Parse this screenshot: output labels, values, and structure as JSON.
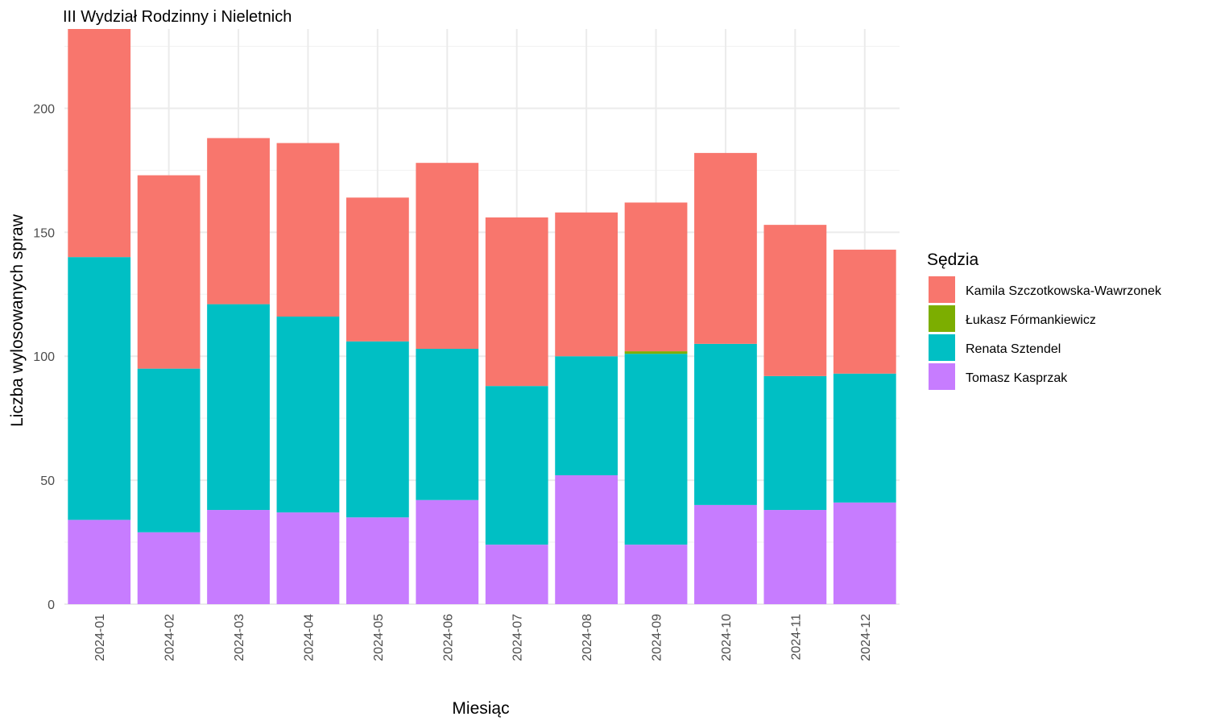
{
  "chart_data": {
    "type": "bar",
    "stacked": true,
    "title": "III Wydział Rodzinny i Nieletnich",
    "xlabel": "Miesiąc",
    "ylabel": "Liczba wylosowanych spraw",
    "ylim": [
      0,
      232
    ],
    "yticks": [
      "0",
      "50",
      "100",
      "150",
      "200"
    ],
    "grid": true,
    "legend_position": "right",
    "legend_title": "Sędzia",
    "categories": [
      "2024-01",
      "2024-02",
      "2024-03",
      "2024-04",
      "2024-05",
      "2024-06",
      "2024-07",
      "2024-08",
      "2024-09",
      "2024-10",
      "2024-11",
      "2024-12"
    ],
    "series": [
      {
        "name": "Tomasz Kasprzak",
        "color": "#C77CFF",
        "values": [
          34,
          29,
          38,
          37,
          35,
          42,
          24,
          52,
          24,
          40,
          38,
          41
        ]
      },
      {
        "name": "Renata Sztendel",
        "color": "#00BFC4",
        "values": [
          106,
          66,
          83,
          79,
          71,
          61,
          64,
          48,
          77,
          65,
          54,
          52
        ]
      },
      {
        "name": "Łukasz Fórmankiewicz",
        "color": "#7CAE00",
        "values": [
          0,
          0,
          0,
          0,
          0,
          0,
          0,
          0,
          1,
          0,
          0,
          0
        ]
      },
      {
        "name": "Kamila Szczotkowska-Wawrzonek",
        "color": "#F8766D",
        "values": [
          92,
          78,
          67,
          70,
          58,
          75,
          68,
          58,
          60,
          77,
          61,
          50
        ]
      }
    ],
    "legend_order": [
      "Kamila Szczotkowska-Wawrzonek",
      "Łukasz Fórmankiewicz",
      "Renata Sztendel",
      "Tomasz Kasprzak"
    ]
  }
}
